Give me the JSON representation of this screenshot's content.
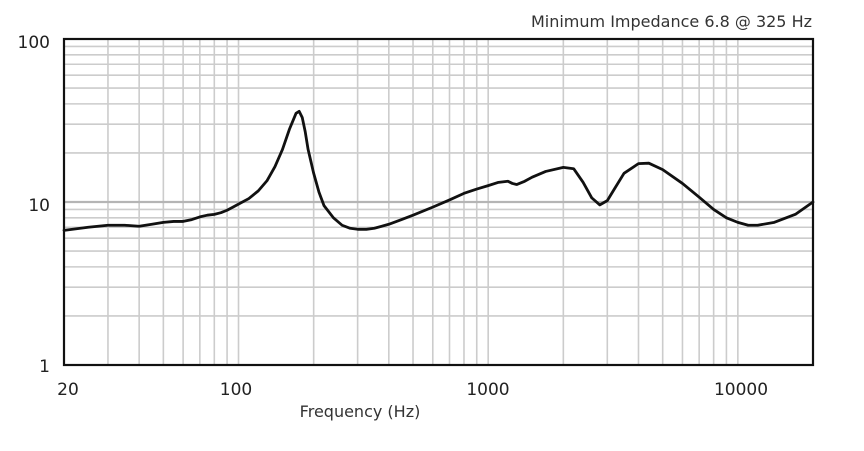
{
  "chart_data": {
    "type": "line",
    "title": "",
    "annotation": "Minimum Impedance 6.8 @ 325 Hz",
    "xlabel": "Frequency (Hz)",
    "ylabel": "",
    "x_scale": "log",
    "y_scale": "log",
    "xlim": [
      20,
      20000
    ],
    "ylim": [
      1,
      100
    ],
    "x_tick_labels": [
      "20",
      "100",
      "1000",
      "10000"
    ],
    "y_tick_labels": [
      "100",
      "10",
      "1"
    ],
    "grid": true,
    "colors": {
      "line": "#111111",
      "grid": "#cccccc",
      "frame": "#111111"
    },
    "series": [
      {
        "x": [
          20,
          25,
          30,
          35,
          40,
          45,
          50,
          55,
          60,
          65,
          70,
          75,
          80,
          85,
          90,
          95,
          100,
          110,
          120,
          130,
          140,
          150,
          160,
          170,
          175,
          180,
          185,
          190,
          200,
          210,
          220,
          240,
          260,
          280,
          300,
          325,
          350,
          400,
          450,
          500,
          600,
          700,
          800,
          900,
          1000,
          1100,
          1200,
          1250,
          1300,
          1400,
          1500,
          1700,
          2000,
          2200,
          2400,
          2600,
          2800,
          3000,
          3200,
          3500,
          4000,
          4400,
          5000,
          6000,
          7000,
          8000,
          9000,
          10000,
          11000,
          12000,
          14000,
          17000,
          20000
        ],
        "y": [
          6.7,
          7.0,
          7.2,
          7.2,
          7.1,
          7.3,
          7.5,
          7.6,
          7.6,
          7.8,
          8.1,
          8.3,
          8.4,
          8.6,
          8.9,
          9.3,
          9.7,
          10.5,
          11.7,
          13.5,
          16.5,
          21,
          28,
          35,
          36,
          33,
          27,
          21,
          15,
          11.5,
          9.5,
          8.0,
          7.2,
          6.9,
          6.8,
          6.8,
          6.9,
          7.3,
          7.8,
          8.3,
          9.3,
          10.3,
          11.3,
          12.0,
          12.6,
          13.2,
          13.4,
          13.0,
          12.8,
          13.4,
          14.2,
          15.4,
          16.3,
          16.0,
          13.2,
          10.6,
          9.6,
          10.2,
          12.0,
          15.0,
          17.2,
          17.3,
          15.8,
          13.0,
          10.7,
          9.0,
          8.0,
          7.5,
          7.2,
          7.2,
          7.5,
          8.4,
          10.0
        ]
      }
    ]
  }
}
